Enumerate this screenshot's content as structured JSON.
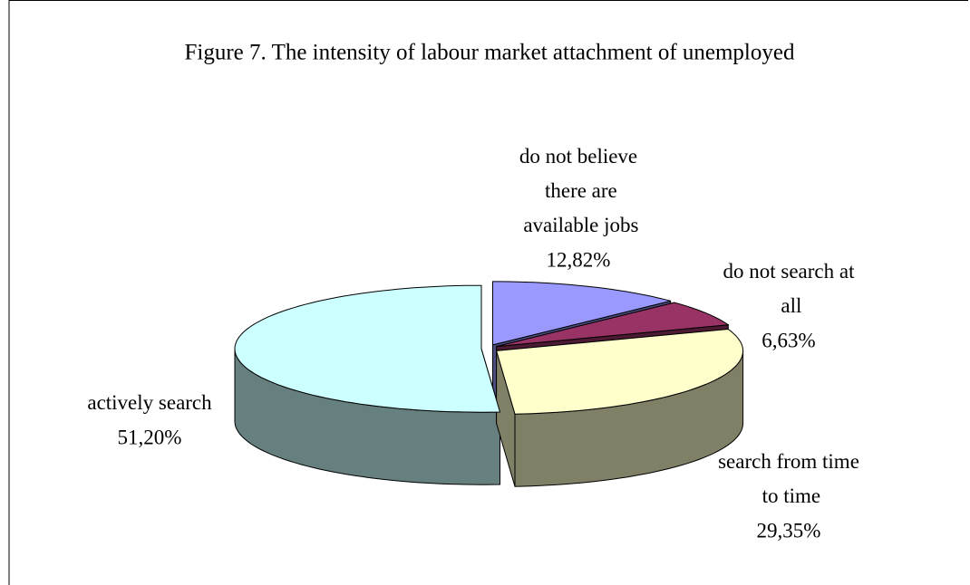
{
  "chart_data": {
    "type": "pie3d",
    "title": "Figure 7.  The intensity of labour market attachment of unemployed",
    "categories": [
      "do not believe there are available jobs",
      "do not search at all",
      "search from time to time",
      "actively search"
    ],
    "values": [
      12.82,
      6.63,
      29.35,
      51.2
    ],
    "value_labels": [
      "12,82%",
      "6,63%",
      "29,35%",
      "51,20%"
    ],
    "colors": [
      "#9999ff",
      "#993366",
      "#ffffcc",
      "#ccffff"
    ]
  }
}
